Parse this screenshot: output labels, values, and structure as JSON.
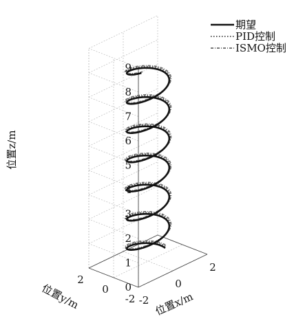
{
  "chart_data": {
    "type": "line",
    "projection": "3d",
    "title": "",
    "xlabel": "位置x/m",
    "ylabel": "位置y/m",
    "zlabel": "位置z/m",
    "xlim": [
      -2,
      2
    ],
    "ylim": [
      -2,
      2
    ],
    "zlim": [
      0,
      9
    ],
    "x_ticks": [
      "-2",
      "0",
      "2"
    ],
    "y_ticks": [
      "-2",
      "0",
      "2"
    ],
    "z_ticks": [
      "0",
      "1",
      "2",
      "3",
      "4",
      "5",
      "6",
      "7",
      "8",
      "9"
    ],
    "grid": true,
    "legend_position": "top-right",
    "helix": {
      "radius": 1,
      "z_start": 0.2,
      "z_end": 8.1,
      "turns": 6.6
    },
    "series": [
      {
        "name": "期望",
        "style": "solid",
        "color": "#111111"
      },
      {
        "name": "PID控制",
        "style": "dotted",
        "color": "#555555"
      },
      {
        "name": "ISMO控制",
        "style": "dash-dot",
        "color": "#777777"
      }
    ]
  }
}
